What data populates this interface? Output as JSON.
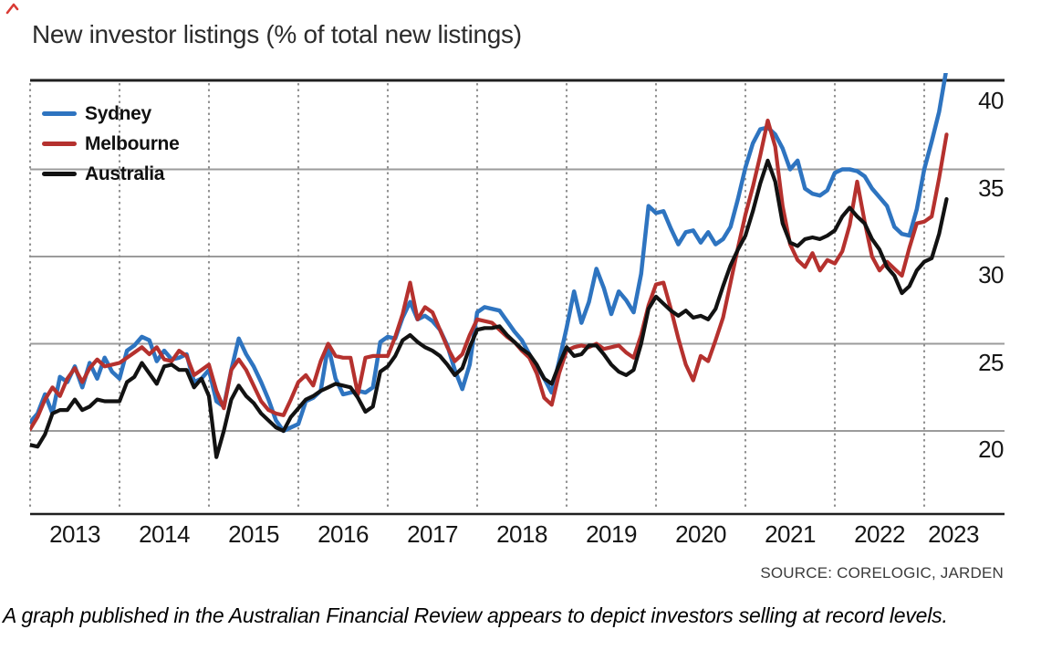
{
  "title": "New investor listings (% of total new listings)",
  "source": "SOURCE: CORELOGIC, JARDEN",
  "caption": "A graph published in the Australian Financial Review appears to depict investors selling at record levels.",
  "colors": {
    "sydney": "#2E74C0",
    "melbourne": "#B5312E",
    "australia": "#121212",
    "gridline": "#9b9b9b",
    "dotted_gridline": "#8f8f8f",
    "axis": "#1f1f1f",
    "corner_mark": "#d93a34"
  },
  "legend": [
    {
      "label": "Sydney",
      "color": "#2E74C0"
    },
    {
      "label": "Melbourne",
      "color": "#B5312E"
    },
    {
      "label": "Australia",
      "color": "#121212"
    }
  ],
  "chart_data": {
    "type": "line",
    "title": "New investor listings (% of total new listings)",
    "xlabel": "",
    "ylabel": "% of total new listings",
    "x_start": "2013-01",
    "x_end": "2023-04",
    "frequency": "monthly",
    "x_tick_labels": [
      "2013",
      "2014",
      "2015",
      "2016",
      "2017",
      "2018",
      "2019",
      "2020",
      "2021",
      "2022",
      "2023"
    ],
    "y_tick_labels": [
      "40",
      "35",
      "30",
      "25",
      "20"
    ],
    "y_ticks": [
      40,
      35,
      30,
      25,
      20
    ],
    "ylim": [
      15.2,
      40
    ],
    "grid": "horizontal solid, vertical dotted at year starts",
    "legend_position": "top-left inside plot",
    "series": [
      {
        "name": "Sydney",
        "color": "#2E74C0",
        "values": [
          20.5,
          21.0,
          22.1,
          21.0,
          23.1,
          22.8,
          23.7,
          22.5,
          23.9,
          23.0,
          24.2,
          23.4,
          23.0,
          24.6,
          24.9,
          25.4,
          25.2,
          24.0,
          24.6,
          24.1,
          24.2,
          24.4,
          22.8,
          23.0,
          23.5,
          21.7,
          21.4,
          23.5,
          25.3,
          24.4,
          23.7,
          22.8,
          21.8,
          20.6,
          20.0,
          20.2,
          20.4,
          21.7,
          21.9,
          22.3,
          24.9,
          23.0,
          22.1,
          22.2,
          22.3,
          22.2,
          22.5,
          25.1,
          25.4,
          25.3,
          26.5,
          27.4,
          26.4,
          26.6,
          26.3,
          25.8,
          24.9,
          23.5,
          22.4,
          23.8,
          26.8,
          27.1,
          27.0,
          26.9,
          26.3,
          25.7,
          25.2,
          24.4,
          23.7,
          23.0,
          22.2,
          24.0,
          25.9,
          28.0,
          26.2,
          27.4,
          29.3,
          28.2,
          26.7,
          28.0,
          27.5,
          26.8,
          29.0,
          32.9,
          32.5,
          32.6,
          31.6,
          30.7,
          31.4,
          31.5,
          30.8,
          31.4,
          30.7,
          31.0,
          31.7,
          33.3,
          35.1,
          36.5,
          37.3,
          37.4,
          37.0,
          36.2,
          35.0,
          35.5,
          33.9,
          33.6,
          33.5,
          33.8,
          34.8,
          35.0,
          35.0,
          34.9,
          34.6,
          33.9,
          33.4,
          32.9,
          31.7,
          31.3,
          31.2,
          32.7,
          35.0,
          36.6,
          38.3,
          40.8
        ]
      },
      {
        "name": "Melbourne",
        "color": "#B5312E",
        "values": [
          20.1,
          20.8,
          21.8,
          22.5,
          22.0,
          23.0,
          23.6,
          22.8,
          23.6,
          24.1,
          23.7,
          23.8,
          23.9,
          24.2,
          24.5,
          24.8,
          24.4,
          24.8,
          24.1,
          24.0,
          24.6,
          24.3,
          23.2,
          23.5,
          23.8,
          22.3,
          21.3,
          23.5,
          24.1,
          23.5,
          22.6,
          21.7,
          21.2,
          21.0,
          20.9,
          21.8,
          22.8,
          23.2,
          22.6,
          24.0,
          25.0,
          24.3,
          24.2,
          24.2,
          22.1,
          24.2,
          24.3,
          24.3,
          24.3,
          25.4,
          26.7,
          28.5,
          26.4,
          27.1,
          26.8,
          25.8,
          24.8,
          24.0,
          24.4,
          25.5,
          26.4,
          26.3,
          26.2,
          25.8,
          25.4,
          25.1,
          24.6,
          24.2,
          23.3,
          21.9,
          21.5,
          23.3,
          24.6,
          24.8,
          24.9,
          24.8,
          25.0,
          24.7,
          24.8,
          24.9,
          24.5,
          24.2,
          25.5,
          27.2,
          28.4,
          28.5,
          27.0,
          25.3,
          23.8,
          22.9,
          24.3,
          24.0,
          25.2,
          26.5,
          28.5,
          30.5,
          32.4,
          34.0,
          35.8,
          37.8,
          36.3,
          32.9,
          30.7,
          29.8,
          29.4,
          30.2,
          29.2,
          29.8,
          29.6,
          30.3,
          31.8,
          34.3,
          32.0,
          30.0,
          29.2,
          29.7,
          29.3,
          28.9,
          30.5,
          31.9,
          32.0,
          32.3,
          34.5,
          37.0
        ]
      },
      {
        "name": "Australia",
        "color": "#121212",
        "values": [
          19.2,
          19.1,
          19.8,
          21.0,
          21.2,
          21.2,
          21.8,
          21.2,
          21.4,
          21.8,
          21.7,
          21.7,
          21.7,
          22.8,
          23.1,
          23.9,
          23.3,
          22.7,
          23.7,
          23.8,
          23.5,
          23.5,
          22.5,
          23.0,
          22.0,
          18.5,
          20.0,
          21.8,
          22.6,
          22.0,
          21.6,
          21.0,
          20.6,
          20.2,
          20.0,
          20.8,
          21.3,
          21.8,
          22.0,
          22.3,
          22.5,
          22.7,
          22.6,
          22.5,
          21.9,
          21.1,
          21.4,
          23.4,
          23.7,
          24.3,
          25.2,
          25.5,
          25.1,
          24.8,
          24.6,
          24.3,
          23.8,
          23.2,
          23.6,
          24.8,
          25.8,
          25.9,
          25.9,
          26.0,
          25.5,
          25.1,
          24.7,
          24.4,
          23.8,
          23.0,
          22.7,
          23.8,
          24.8,
          24.3,
          24.4,
          24.9,
          24.9,
          24.4,
          23.8,
          23.4,
          23.2,
          23.5,
          25.0,
          27.0,
          27.7,
          27.3,
          26.9,
          26.6,
          26.9,
          26.5,
          26.6,
          26.4,
          27.0,
          28.3,
          29.5,
          30.4,
          31.2,
          32.6,
          34.2,
          35.5,
          34.3,
          31.9,
          30.8,
          30.6,
          31.0,
          31.1,
          31.0,
          31.2,
          31.5,
          32.3,
          32.8,
          32.3,
          31.9,
          31.0,
          30.4,
          29.4,
          28.9,
          27.9,
          28.3,
          29.2,
          29.7,
          29.9,
          31.3,
          33.3
        ]
      }
    ]
  }
}
